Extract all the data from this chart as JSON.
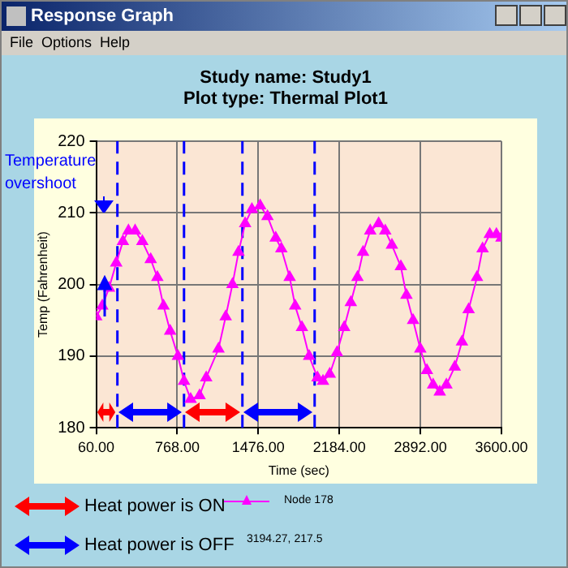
{
  "chart_data": {
    "type": "line",
    "title": "Study name: Study1",
    "subtitle": "Plot type: Thermal Plot1",
    "xlabel": "Time (sec)",
    "ylabel": "Temp (Fahrenheit)",
    "x": [
      60,
      113,
      172,
      235,
      293,
      342,
      400,
      463,
      536,
      594,
      648,
      706,
      774,
      827,
      885,
      963,
      1021,
      1128,
      1191,
      1250,
      1303,
      1361,
      1420,
      1492,
      1556,
      1628,
      1677,
      1750,
      1798,
      1857,
      1920,
      1993,
      2041,
      2100,
      2163,
      2226,
      2284,
      2342,
      2391,
      2454,
      2527,
      2585,
      2643,
      2721,
      2770,
      2828,
      2891,
      2949,
      3003,
      3061,
      3119,
      3192,
      3255,
      3313,
      3386,
      3435,
      3498,
      3556,
      3600
    ],
    "series": [
      {
        "name": "Node 178",
        "color": "#ff00ff",
        "values": [
          195.5,
          197,
          199.5,
          203,
          206,
          207.5,
          207.5,
          206,
          203.5,
          201,
          197,
          193.5,
          190,
          186.5,
          184,
          184.5,
          187,
          191,
          195.5,
          200,
          204.5,
          208.5,
          210.5,
          211,
          209.5,
          206.5,
          205,
          201,
          197,
          194,
          190,
          187,
          186.5,
          187.5,
          190.5,
          194,
          197.5,
          201,
          204.5,
          207.5,
          208.5,
          207.5,
          205.5,
          202.5,
          198.5,
          195,
          191,
          188,
          186,
          185,
          186,
          188.5,
          192,
          196.5,
          201,
          205,
          207,
          207,
          206.5
        ]
      }
    ],
    "xlim": [
      60,
      3600
    ],
    "ylim": [
      180,
      220
    ],
    "xticks": [
      {
        "value": 60,
        "label": "60.00"
      },
      {
        "value": 768,
        "label": "768.00"
      },
      {
        "value": 1476,
        "label": "1476.00"
      },
      {
        "value": 2184,
        "label": "2184.00"
      },
      {
        "value": 2892,
        "label": "2892.00"
      },
      {
        "value": 3600,
        "label": "3600.00"
      }
    ],
    "yticks": [
      180,
      190,
      200,
      210,
      220
    ],
    "grid": true,
    "marker": "triangle",
    "line_style": "solid",
    "legend": "bottom",
    "ref_lines": [
      {
        "axis": "x",
        "value": 245,
        "color": "#0000ff",
        "line_style": "dashed"
      },
      {
        "axis": "x",
        "value": 827,
        "color": "#0000ff",
        "line_style": "dashed"
      },
      {
        "axis": "x",
        "value": 1337,
        "color": "#0000ff",
        "line_style": "dashed"
      },
      {
        "axis": "x",
        "value": 1968,
        "color": "#0000ff",
        "line_style": "dashed"
      }
    ],
    "annotations": [
      "Response Graph",
      "File",
      "Options",
      "Help",
      "Temperature overshoot",
      "3194.27, 217.5",
      "Heat power is ON",
      "Heat power is OFF"
    ]
  }
}
